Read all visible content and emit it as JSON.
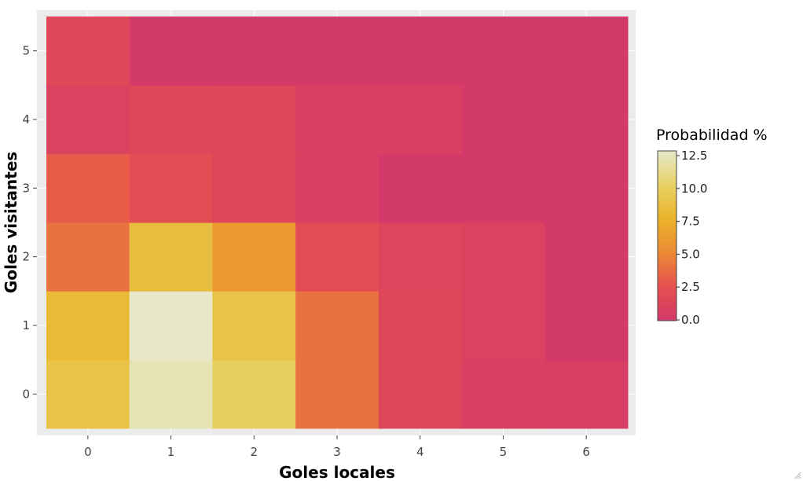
{
  "chart_data": {
    "type": "heatmap",
    "title": "",
    "xlabel": "Goles locales",
    "ylabel": "Goles visitantes",
    "x": [
      0,
      1,
      2,
      3,
      4,
      5,
      6
    ],
    "y": [
      0,
      1,
      2,
      3,
      4,
      5
    ],
    "x_tick_labels": [
      "0",
      "1",
      "2",
      "3",
      "4",
      "5",
      "6"
    ],
    "y_tick_labels": [
      "0",
      "1",
      "2",
      "3",
      "4",
      "5"
    ],
    "values": [
      [
        8.7,
        12.0,
        9.7,
        4.0,
        1.5,
        0.6,
        0.5
      ],
      [
        8.0,
        12.5,
        8.8,
        4.0,
        1.5,
        1.0,
        0.0
      ],
      [
        4.0,
        8.4,
        6.0,
        2.0,
        1.3,
        1.0,
        0.0
      ],
      [
        3.0,
        2.0,
        1.4,
        0.8,
        0.0,
        0.0,
        0.0
      ],
      [
        1.0,
        1.6,
        1.4,
        0.8,
        0.8,
        0.0,
        0.0
      ],
      [
        1.6,
        0.0,
        0.0,
        0.0,
        0.0,
        0.0,
        0.0
      ]
    ],
    "colorbar": {
      "title": "Probabilidad %",
      "range": [
        0,
        12.5
      ],
      "ticks": [
        0,
        2.5,
        5,
        7.5,
        10,
        12.5
      ],
      "tick_labels": [
        "0.0",
        "2.5",
        "5.0",
        "7.5",
        "10.0",
        "12.5"
      ],
      "colorscale": [
        "#d23a6a",
        "#e6504e",
        "#eb8a36",
        "#eab32a",
        "#e8d266",
        "#e6e8c8"
      ]
    },
    "legend_position": "right",
    "grid": true,
    "panel_background": "#ebebeb"
  }
}
